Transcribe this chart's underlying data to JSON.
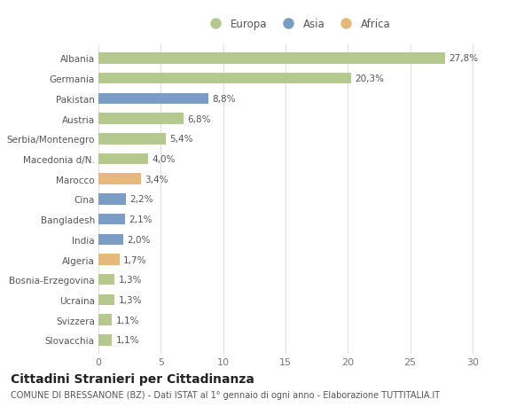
{
  "categories": [
    "Albania",
    "Germania",
    "Pakistan",
    "Austria",
    "Serbia/Montenegro",
    "Macedonia d/N.",
    "Marocco",
    "Cina",
    "Bangladesh",
    "India",
    "Algeria",
    "Bosnia-Erzegovina",
    "Ucraina",
    "Svizzera",
    "Slovacchia"
  ],
  "values": [
    27.8,
    20.3,
    8.8,
    6.8,
    5.4,
    4.0,
    3.4,
    2.2,
    2.1,
    2.0,
    1.7,
    1.3,
    1.3,
    1.1,
    1.1
  ],
  "labels": [
    "27,8%",
    "20,3%",
    "8,8%",
    "6,8%",
    "5,4%",
    "4,0%",
    "3,4%",
    "2,2%",
    "2,1%",
    "2,0%",
    "1,7%",
    "1,3%",
    "1,3%",
    "1,1%",
    "1,1%"
  ],
  "continents": [
    "Europa",
    "Europa",
    "Asia",
    "Europa",
    "Europa",
    "Europa",
    "Africa",
    "Asia",
    "Asia",
    "Asia",
    "Africa",
    "Europa",
    "Europa",
    "Europa",
    "Europa"
  ],
  "colors": {
    "Europa": "#b5c98e",
    "Asia": "#7b9cc4",
    "Africa": "#e8b87a"
  },
  "legend_order": [
    "Europa",
    "Asia",
    "Africa"
  ],
  "xlim": [
    0,
    32
  ],
  "xticks": [
    0,
    5,
    10,
    15,
    20,
    25,
    30
  ],
  "title": "Cittadini Stranieri per Cittadinanza",
  "subtitle": "COMUNE DI BRESSANONE (BZ) - Dati ISTAT al 1° gennaio di ogni anno - Elaborazione TUTTITALIA.IT",
  "background_color": "#ffffff",
  "grid_color": "#e0e0e0",
  "bar_height": 0.55,
  "label_fontsize": 7.5,
  "ytick_fontsize": 7.5,
  "xtick_fontsize": 8,
  "title_fontsize": 10,
  "subtitle_fontsize": 7
}
